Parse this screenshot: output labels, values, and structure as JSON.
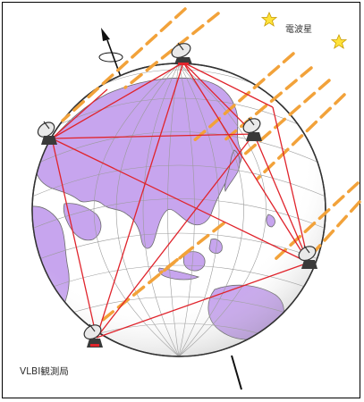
{
  "labels": {
    "radio_source": "電波星",
    "station": "VLBI観測局"
  },
  "colors": {
    "ocean": "#ffffff",
    "land": "#c7a5ee",
    "land_edge": "#6c6c6c",
    "grid": "#9a9a9a",
    "baseline": "#e0242c",
    "ray": "#f2a23a",
    "star": "#ffe23a",
    "star_edge": "#c79b00",
    "antenna": "#3a3a3a"
  },
  "icons": [
    "star-icon",
    "antenna-icon",
    "rotation-axis-arrow"
  ]
}
